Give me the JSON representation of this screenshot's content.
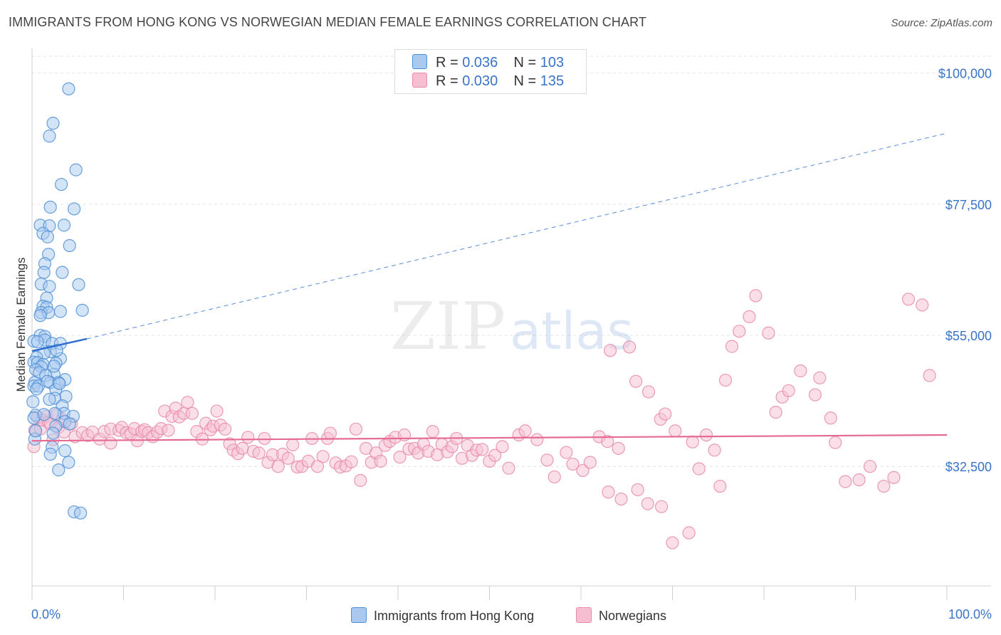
{
  "title": "IMMIGRANTS FROM HONG KONG VS NORWEGIAN MEDIAN FEMALE EARNINGS CORRELATION CHART",
  "source": "Source: ZipAtlas.com",
  "watermark": {
    "zip": "ZIP",
    "atlas": "atlas"
  },
  "legend": {
    "rows": [
      {
        "r_label": "R = ",
        "r_value": "0.036",
        "n_label": "N = ",
        "n_value": "103"
      },
      {
        "r_label": "R = ",
        "r_value": "0.030",
        "n_label": "N = ",
        "n_value": "135"
      }
    ]
  },
  "colors": {
    "blue_fill": "#a9c9ef",
    "blue_stroke": "#4d8fd6",
    "blue_line": "#2f6fd1",
    "pink_fill": "#f6bfd1",
    "pink_stroke": "#e88aa9",
    "pink_line": "#e56b95",
    "axis_label": "#3a73c8",
    "grid": "#e4e4e4"
  },
  "chart_data": {
    "type": "scatter",
    "title": "IMMIGRANTS FROM HONG KONG VS NORWEGIAN MEDIAN FEMALE EARNINGS CORRELATION CHART",
    "xlabel": "",
    "ylabel": "Median Female Earnings",
    "xlim": [
      0,
      100
    ],
    "ylim": [
      12000,
      104000
    ],
    "x_tick_labels": [
      "0.0%",
      "100.0%"
    ],
    "y_ticks": [
      {
        "value": 32500,
        "label": "$32,500"
      },
      {
        "value": 55000,
        "label": "$55,000"
      },
      {
        "value": 77500,
        "label": "$77,500"
      },
      {
        "value": 100000,
        "label": "$100,000"
      }
    ],
    "grid": true,
    "legend_position": "bottom",
    "series": [
      {
        "name": "Immigrants from Hong Kong",
        "color": "#4d8fd6",
        "points": [
          [
            4.0,
            97.3
          ],
          [
            2.3,
            91.4
          ],
          [
            1.9,
            89.2
          ],
          [
            4.8,
            83.4
          ],
          [
            3.2,
            80.9
          ],
          [
            2.0,
            77.0
          ],
          [
            4.6,
            76.7
          ],
          [
            0.9,
            73.9
          ],
          [
            1.9,
            73.8
          ],
          [
            3.5,
            73.9
          ],
          [
            1.2,
            72.5
          ],
          [
            1.7,
            71.9
          ],
          [
            4.1,
            70.4
          ],
          [
            1.8,
            68.9
          ],
          [
            1.4,
            67.3
          ],
          [
            3.3,
            65.8
          ],
          [
            1.3,
            65.8
          ],
          [
            1.0,
            63.8
          ],
          [
            1.9,
            63.4
          ],
          [
            5.1,
            63.7
          ],
          [
            1.6,
            61.4
          ],
          [
            1.2,
            60.0
          ],
          [
            1.6,
            59.8
          ],
          [
            5.5,
            59.3
          ],
          [
            3.1,
            59.1
          ],
          [
            1.0,
            58.9
          ],
          [
            1.8,
            58.9
          ],
          [
            0.9,
            58.4
          ],
          [
            0.9,
            55.0
          ],
          [
            1.4,
            54.8
          ],
          [
            0.2,
            54.0
          ],
          [
            1.4,
            54.2
          ],
          [
            0.6,
            53.9
          ],
          [
            2.2,
            53.6
          ],
          [
            3.1,
            53.6
          ],
          [
            2.0,
            52.2
          ],
          [
            1.3,
            51.9
          ],
          [
            0.5,
            51.2
          ],
          [
            3.1,
            51.0
          ],
          [
            0.2,
            50.4
          ],
          [
            0.6,
            50.3
          ],
          [
            1.2,
            50.0
          ],
          [
            2.6,
            50.2
          ],
          [
            1.0,
            49.6
          ],
          [
            0.4,
            49.1
          ],
          [
            0.8,
            48.6
          ],
          [
            2.4,
            48.3
          ],
          [
            1.5,
            48.1
          ],
          [
            3.6,
            47.4
          ],
          [
            0.3,
            46.9
          ],
          [
            2.0,
            46.9
          ],
          [
            2.9,
            46.9
          ],
          [
            0.2,
            46.3
          ],
          [
            0.7,
            46.3
          ],
          [
            2.6,
            45.7
          ],
          [
            3.7,
            44.5
          ],
          [
            2.5,
            44.2
          ],
          [
            1.9,
            44.0
          ],
          [
            0.1,
            43.6
          ],
          [
            3.3,
            42.9
          ],
          [
            3.5,
            41.6
          ],
          [
            2.5,
            41.6
          ],
          [
            0.4,
            41.3
          ],
          [
            0.2,
            40.8
          ],
          [
            4.5,
            41.1
          ],
          [
            1.3,
            41.4
          ],
          [
            3.6,
            40.2
          ],
          [
            4.1,
            39.8
          ],
          [
            2.6,
            39.4
          ],
          [
            2.3,
            38.2
          ],
          [
            3.6,
            35.2
          ],
          [
            2.2,
            35.8
          ],
          [
            2.0,
            34.6
          ],
          [
            4.0,
            33.2
          ],
          [
            2.9,
            31.9
          ],
          [
            4.6,
            24.7
          ],
          [
            5.3,
            24.5
          ],
          [
            0.3,
            37.2
          ],
          [
            0.4,
            38.6
          ],
          [
            2.7,
            52.4
          ],
          [
            2.4,
            49.7
          ],
          [
            3.0,
            46.7
          ],
          [
            1.7,
            47.1
          ],
          [
            0.5,
            45.8
          ]
        ]
      },
      {
        "name": "Norwegians",
        "color": "#e88aa9",
        "points": [
          [
            0.2,
            35.9
          ],
          [
            0.3,
            38.7
          ],
          [
            0.6,
            41.0
          ],
          [
            0.9,
            38.9
          ],
          [
            1.1,
            40.5
          ],
          [
            1.6,
            41.1
          ],
          [
            1.8,
            40.1
          ],
          [
            2.0,
            39.8
          ],
          [
            2.3,
            37.1
          ],
          [
            2.7,
            41.4
          ],
          [
            2.9,
            39.2
          ],
          [
            3.3,
            40.6
          ],
          [
            3.5,
            38.4
          ],
          [
            4.3,
            39.8
          ],
          [
            4.7,
            37.6
          ],
          [
            5.5,
            38.3
          ],
          [
            6.1,
            37.8
          ],
          [
            6.6,
            38.4
          ],
          [
            7.4,
            37.2
          ],
          [
            7.9,
            38.5
          ],
          [
            8.6,
            38.9
          ],
          [
            8.6,
            36.5
          ],
          [
            9.5,
            38.7
          ],
          [
            9.8,
            39.2
          ],
          [
            10.3,
            38.3
          ],
          [
            10.8,
            38.1
          ],
          [
            11.2,
            39.0
          ],
          [
            11.5,
            36.9
          ],
          [
            12.0,
            38.5
          ],
          [
            12.3,
            38.8
          ],
          [
            12.7,
            38.3
          ],
          [
            13.2,
            37.6
          ],
          [
            13.7,
            38.4
          ],
          [
            14.1,
            39.0
          ],
          [
            14.5,
            42.0
          ],
          [
            14.9,
            38.7
          ],
          [
            15.3,
            41.1
          ],
          [
            15.7,
            42.5
          ],
          [
            16.1,
            41.0
          ],
          [
            16.6,
            41.6
          ],
          [
            17.0,
            43.5
          ],
          [
            17.5,
            41.6
          ],
          [
            18.0,
            38.5
          ],
          [
            18.6,
            37.2
          ],
          [
            19.0,
            39.9
          ],
          [
            19.5,
            38.8
          ],
          [
            19.8,
            39.4
          ],
          [
            20.2,
            42.0
          ],
          [
            20.6,
            39.6
          ],
          [
            21.1,
            38.9
          ],
          [
            21.6,
            36.4
          ],
          [
            22.0,
            35.3
          ],
          [
            22.5,
            34.7
          ],
          [
            23.0,
            35.6
          ],
          [
            23.6,
            37.5
          ],
          [
            24.2,
            35.1
          ],
          [
            24.8,
            34.8
          ],
          [
            25.4,
            37.3
          ],
          [
            25.8,
            33.2
          ],
          [
            26.3,
            34.5
          ],
          [
            26.9,
            32.5
          ],
          [
            27.4,
            34.6
          ],
          [
            28.0,
            33.9
          ],
          [
            28.5,
            36.2
          ],
          [
            29.0,
            32.4
          ],
          [
            29.5,
            32.5
          ],
          [
            30.2,
            33.4
          ],
          [
            30.6,
            37.3
          ],
          [
            31.2,
            32.5
          ],
          [
            31.8,
            34.2
          ],
          [
            32.3,
            37.3
          ],
          [
            32.6,
            38.2
          ],
          [
            33.2,
            33.1
          ],
          [
            33.7,
            32.4
          ],
          [
            34.3,
            32.6
          ],
          [
            34.9,
            33.3
          ],
          [
            35.4,
            38.9
          ],
          [
            35.9,
            30.1
          ],
          [
            36.5,
            35.6
          ],
          [
            37.1,
            33.2
          ],
          [
            37.6,
            34.8
          ],
          [
            38.1,
            33.4
          ],
          [
            38.6,
            36.1
          ],
          [
            39.1,
            36.8
          ],
          [
            39.7,
            37.5
          ],
          [
            40.2,
            34.1
          ],
          [
            40.7,
            37.9
          ],
          [
            41.2,
            35.5
          ],
          [
            41.8,
            35.6
          ],
          [
            42.2,
            34.8
          ],
          [
            42.8,
            36.3
          ],
          [
            43.3,
            35.1
          ],
          [
            43.8,
            38.5
          ],
          [
            44.3,
            34.5
          ],
          [
            44.8,
            36.3
          ],
          [
            45.4,
            35.0
          ],
          [
            45.9,
            35.9
          ],
          [
            46.4,
            37.3
          ],
          [
            47.0,
            33.9
          ],
          [
            47.6,
            36.1
          ],
          [
            48.1,
            34.4
          ],
          [
            48.6,
            35.3
          ],
          [
            49.2,
            35.4
          ],
          [
            50.0,
            33.4
          ],
          [
            50.6,
            34.4
          ],
          [
            51.4,
            35.9
          ],
          [
            52.1,
            32.2
          ],
          [
            53.2,
            37.9
          ],
          [
            53.9,
            38.6
          ],
          [
            55.2,
            37.1
          ],
          [
            56.3,
            33.6
          ],
          [
            57.1,
            30.7
          ],
          [
            58.4,
            34.9
          ],
          [
            59.1,
            32.9
          ],
          [
            60.2,
            31.8
          ],
          [
            61.0,
            33.2
          ],
          [
            62.0,
            37.6
          ],
          [
            62.9,
            36.8
          ],
          [
            63.2,
            52.4
          ],
          [
            64.1,
            35.6
          ],
          [
            65.3,
            53.0
          ],
          [
            66.0,
            47.1
          ],
          [
            67.4,
            45.3
          ],
          [
            68.7,
            40.6
          ],
          [
            69.2,
            41.5
          ],
          [
            70.3,
            38.6
          ],
          [
            72.2,
            36.7
          ],
          [
            72.9,
            32.1
          ],
          [
            73.7,
            37.9
          ],
          [
            74.6,
            35.3
          ],
          [
            75.2,
            29.1
          ],
          [
            75.8,
            47.3
          ],
          [
            76.5,
            53.1
          ],
          [
            77.3,
            55.7
          ],
          [
            78.4,
            58.2
          ],
          [
            79.1,
            61.8
          ],
          [
            80.5,
            55.4
          ],
          [
            81.3,
            41.8
          ],
          [
            82.0,
            44.4
          ],
          [
            82.7,
            45.5
          ],
          [
            84.0,
            48.9
          ],
          [
            85.6,
            44.8
          ],
          [
            86.1,
            47.7
          ],
          [
            87.3,
            40.8
          ],
          [
            87.8,
            36.6
          ],
          [
            88.9,
            29.9
          ],
          [
            90.4,
            30.2
          ],
          [
            91.6,
            32.5
          ],
          [
            93.1,
            29.1
          ],
          [
            94.2,
            30.6
          ],
          [
            95.8,
            61.2
          ],
          [
            97.3,
            60.2
          ],
          [
            98.1,
            48.1
          ],
          [
            63.0,
            28.1
          ],
          [
            64.4,
            26.9
          ],
          [
            66.2,
            28.5
          ],
          [
            67.3,
            26.1
          ],
          [
            68.8,
            25.6
          ],
          [
            70.0,
            19.4
          ],
          [
            71.8,
            21.1
          ]
        ]
      }
    ],
    "trend_lines": [
      {
        "series": "Immigrants from Hong Kong",
        "x": [
          0,
          6
        ],
        "y": [
          52.3,
          54.4
        ],
        "dashed_extension_to": [
          100,
          89.7
        ]
      },
      {
        "series": "Norwegians",
        "x": [
          0,
          100
        ],
        "y": [
          36.9,
          37.9
        ]
      }
    ]
  },
  "bottom_legend": {
    "items": [
      {
        "label": "Immigrants from Hong Kong"
      },
      {
        "label": "Norwegians"
      }
    ]
  }
}
